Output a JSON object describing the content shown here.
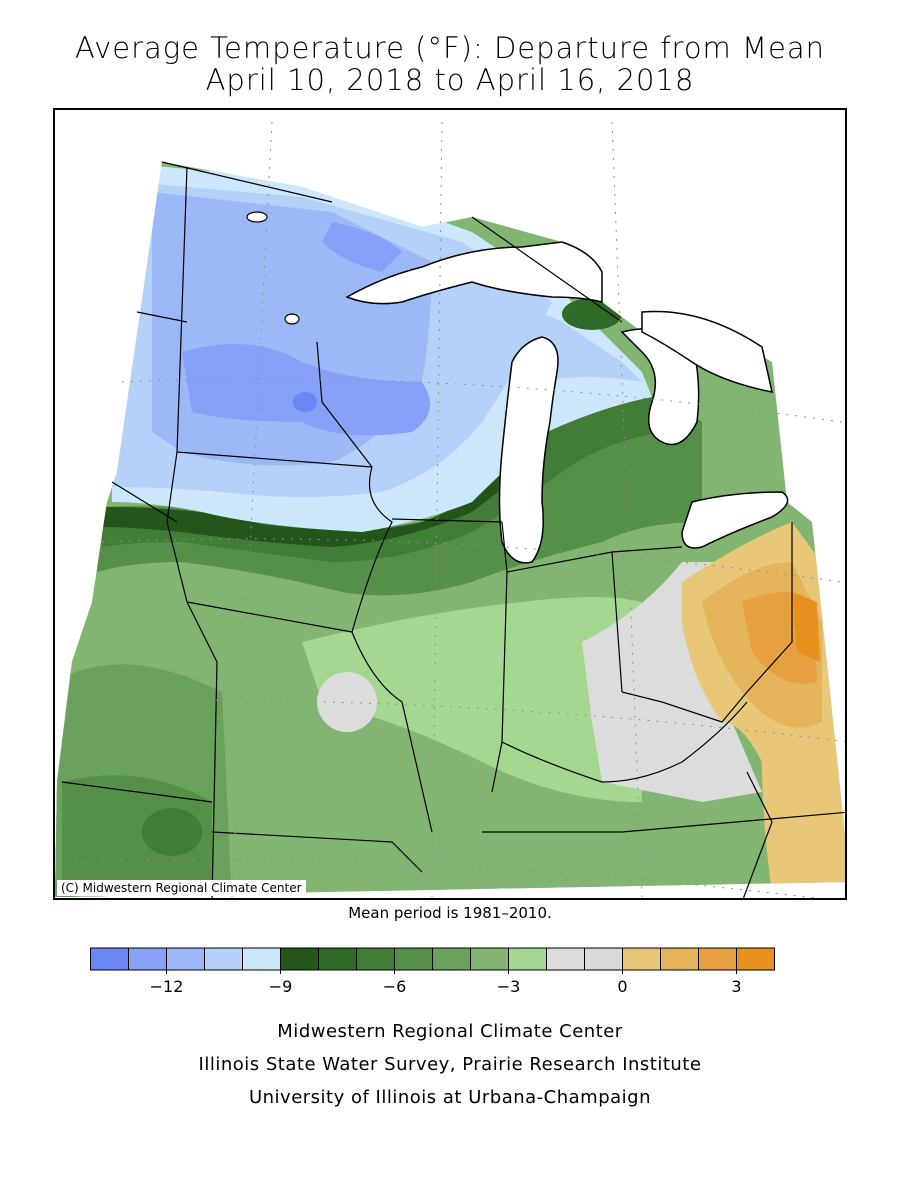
{
  "title": {
    "line1": "Average Temperature (°F): Departure from Mean",
    "line2": "April 10, 2018 to April 16, 2018"
  },
  "map": {
    "copyright": "(C) Midwestern Regional Climate Center",
    "mean_note": "Mean period is 1981–2010."
  },
  "legend": {
    "colors": [
      "#6b86f5",
      "#86a1f7",
      "#9db8f7",
      "#b5d0f9",
      "#cce7fb",
      "#24561c",
      "#306a28",
      "#417d36",
      "#558f48",
      "#6aa15c",
      "#82b572",
      "#a4d78f",
      "#dcdcdc",
      "#d9d9d9",
      "#e8c878",
      "#e5b45a",
      "#e6a040",
      "#e8901e"
    ],
    "tick_labels": [
      "-12",
      "-9",
      "-6",
      "-3",
      "0",
      "3"
    ]
  },
  "footer": {
    "line1": "Midwestern Regional Climate Center",
    "line2": "Illinois State Water Survey, Prairie Research Institute",
    "line3": "University of Illinois at Urbana-Champaign"
  }
}
